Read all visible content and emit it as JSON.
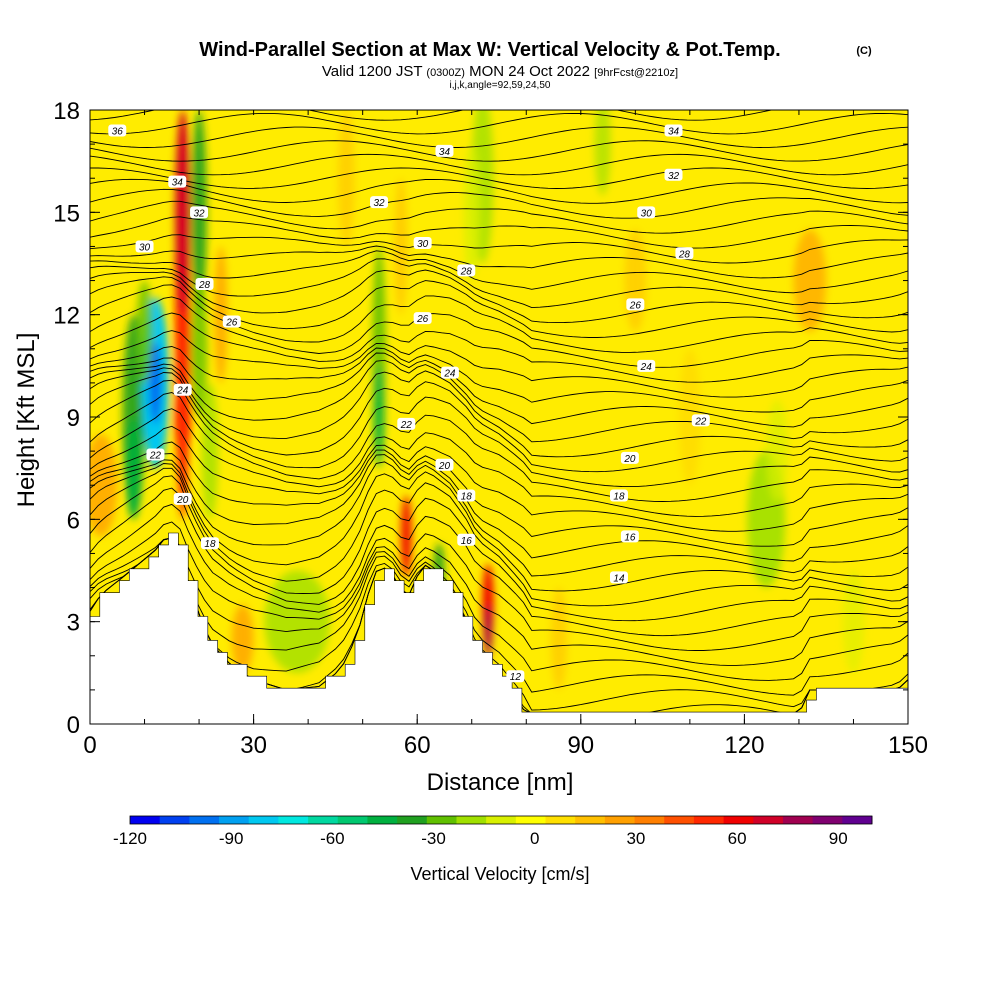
{
  "title": {
    "main": "Wind-Parallel Section at Max W: Vertical Velocity & Pot.Temp.",
    "copyright": "(C)",
    "valid_prefix": "Valid 1200 JST",
    "valid_utc": "(0300Z)",
    "valid_date": "MON 24 Oct 2022",
    "forecast": "[9hrFcst@2210z]",
    "indices": "i,j,k,angle=92,59,24,50"
  },
  "chart_data": {
    "type": "heatmap",
    "xlabel": "Distance [nm]",
    "ylabel": "Height [Kft MSL]",
    "xlim": [
      0,
      150
    ],
    "ylim": [
      0,
      18
    ],
    "x_ticks": [
      0,
      30,
      60,
      90,
      120,
      150
    ],
    "y_ticks": [
      0,
      3,
      6,
      9,
      12,
      15,
      18
    ],
    "colorbar": {
      "label": "Vertical Velocity [cm/s]",
      "range": [
        -120,
        100
      ],
      "step": 10,
      "tick_values": [
        -120,
        -90,
        -60,
        -30,
        0,
        30,
        60,
        90
      ],
      "colors": [
        "#0000f0",
        "#0040f0",
        "#0070f0",
        "#00a0f0",
        "#00c8f0",
        "#00e8e0",
        "#00d8a0",
        "#00c870",
        "#00b040",
        "#20a020",
        "#60c000",
        "#a0e000",
        "#d8f000",
        "#ffff00",
        "#ffe000",
        "#ffc000",
        "#ffa000",
        "#ff7f00",
        "#ff5000",
        "#ff2800",
        "#f00000",
        "#d00028",
        "#a00050",
        "#800070",
        "#600090"
      ]
    },
    "terrain_profile": [
      [
        0,
        3.3
      ],
      [
        2,
        3.8
      ],
      [
        6,
        4.3
      ],
      [
        9,
        4.7
      ],
      [
        12,
        5.1
      ],
      [
        14,
        5.5
      ],
      [
        16,
        5.4
      ],
      [
        18,
        4.2
      ],
      [
        20,
        3.2
      ],
      [
        22,
        2.4
      ],
      [
        26,
        1.7
      ],
      [
        30,
        1.3
      ],
      [
        36,
        1.0
      ],
      [
        42,
        1.1
      ],
      [
        46,
        1.6
      ],
      [
        49,
        2.6
      ],
      [
        51,
        3.8
      ],
      [
        53,
        4.7
      ],
      [
        56,
        4.3
      ],
      [
        58,
        3.6
      ],
      [
        61,
        4.7
      ],
      [
        63,
        4.5
      ],
      [
        66,
        4.0
      ],
      [
        69,
        3.0
      ],
      [
        71,
        2.1
      ],
      [
        75,
        1.5
      ],
      [
        78,
        0.8
      ],
      [
        80,
        0.3
      ],
      [
        110,
        0.3
      ],
      [
        130,
        0.3
      ],
      [
        132,
        1.0
      ],
      [
        148,
        1.0
      ],
      [
        150,
        1.3
      ]
    ],
    "contour_labels": [
      {
        "text": "36",
        "x": 5,
        "y": 17.4
      },
      {
        "text": "34",
        "x": 16,
        "y": 15.9
      },
      {
        "text": "32",
        "x": 20,
        "y": 15.0
      },
      {
        "text": "30",
        "x": 10,
        "y": 14.0
      },
      {
        "text": "28",
        "x": 21,
        "y": 12.9
      },
      {
        "text": "26",
        "x": 26,
        "y": 11.8
      },
      {
        "text": "24",
        "x": 17,
        "y": 9.8
      },
      {
        "text": "22",
        "x": 12,
        "y": 7.9
      },
      {
        "text": "20",
        "x": 17,
        "y": 6.6
      },
      {
        "text": "18",
        "x": 22,
        "y": 5.3
      },
      {
        "text": "34",
        "x": 65,
        "y": 16.8
      },
      {
        "text": "32",
        "x": 53,
        "y": 15.3
      },
      {
        "text": "30",
        "x": 61,
        "y": 14.1
      },
      {
        "text": "28",
        "x": 69,
        "y": 13.3
      },
      {
        "text": "26",
        "x": 61,
        "y": 11.9
      },
      {
        "text": "24",
        "x": 66,
        "y": 10.3
      },
      {
        "text": "22",
        "x": 58,
        "y": 8.8
      },
      {
        "text": "20",
        "x": 65,
        "y": 7.6
      },
      {
        "text": "18",
        "x": 69,
        "y": 6.7
      },
      {
        "text": "16",
        "x": 69,
        "y": 5.4
      },
      {
        "text": "12",
        "x": 78,
        "y": 1.4
      },
      {
        "text": "34",
        "x": 107,
        "y": 17.4
      },
      {
        "text": "32",
        "x": 107,
        "y": 16.1
      },
      {
        "text": "30",
        "x": 102,
        "y": 15.0
      },
      {
        "text": "28",
        "x": 109,
        "y": 13.8
      },
      {
        "text": "26",
        "x": 100,
        "y": 12.3
      },
      {
        "text": "24",
        "x": 102,
        "y": 10.5
      },
      {
        "text": "22",
        "x": 112,
        "y": 8.9
      },
      {
        "text": "20",
        "x": 99,
        "y": 7.8
      },
      {
        "text": "18",
        "x": 97,
        "y": 6.7
      },
      {
        "text": "16",
        "x": 99,
        "y": 5.5
      },
      {
        "text": "14",
        "x": 97,
        "y": 4.3
      }
    ]
  }
}
